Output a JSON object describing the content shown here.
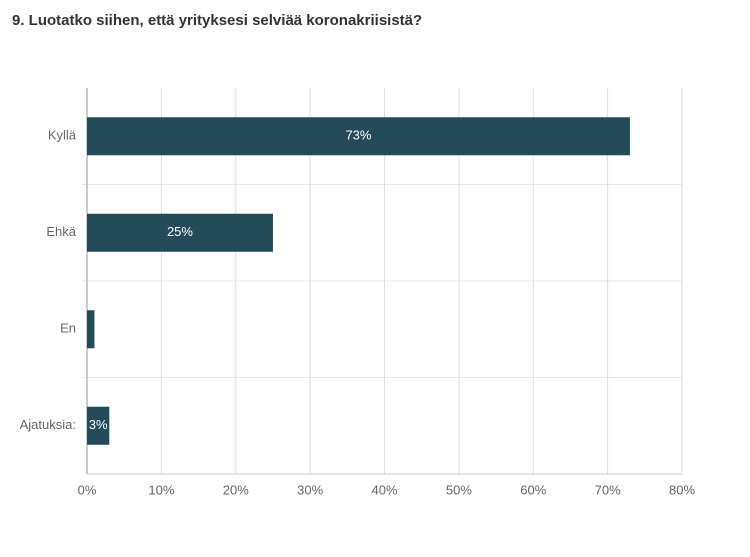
{
  "chart_data": {
    "type": "hbar",
    "title": "9. Luotatko siihen, että yrityksesi selviää koronakriisistä?",
    "categories": [
      "Kyllä",
      "Ehkä",
      "En",
      "Ajatuksia:"
    ],
    "values": [
      73,
      25,
      1,
      3
    ],
    "value_labels": [
      "73%",
      "25%",
      null,
      "3%"
    ],
    "color": "#234b5a",
    "xlim": [
      0,
      80
    ],
    "xticks": [
      {
        "value": 0,
        "label": "0%"
      },
      {
        "value": 10,
        "label": "10%"
      },
      {
        "value": 20,
        "label": "20%"
      },
      {
        "value": 30,
        "label": "30%"
      },
      {
        "value": 40,
        "label": "40%"
      },
      {
        "value": 50,
        "label": "50%"
      },
      {
        "value": 60,
        "label": "60%"
      },
      {
        "value": 70,
        "label": "70%"
      },
      {
        "value": 80,
        "label": "80%"
      }
    ],
    "grid": true
  }
}
